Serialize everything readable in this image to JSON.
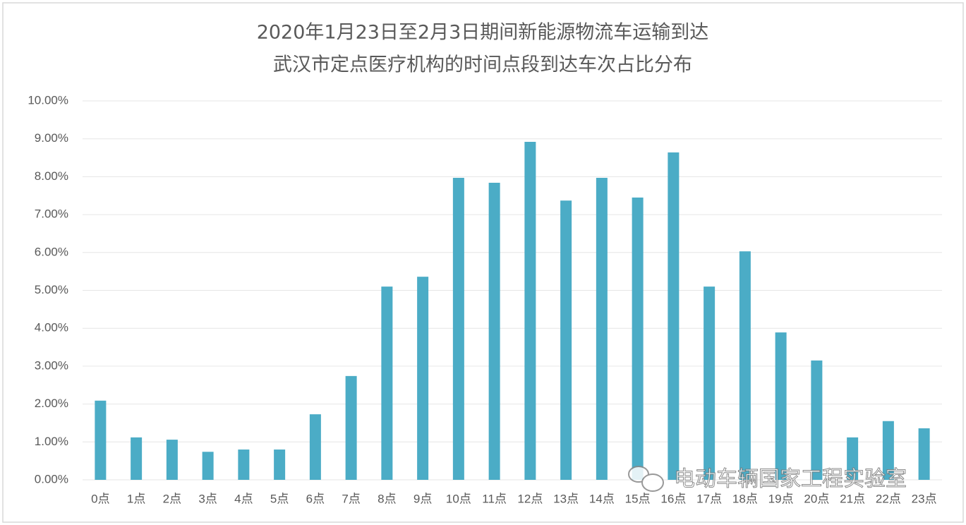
{
  "chart_data": {
    "type": "bar",
    "title": [
      "2020年1月23日至2月3日期间新能源物流车运输到达",
      "武汉市定点医疗机构的时间点段到达车次占比分布"
    ],
    "categories": [
      "0点",
      "1点",
      "2点",
      "3点",
      "4点",
      "5点",
      "6点",
      "7点",
      "8点",
      "9点",
      "10点",
      "11点",
      "12点",
      "13点",
      "14点",
      "15点",
      "16点",
      "17点",
      "18点",
      "19点",
      "20点",
      "21点",
      "22点",
      "23点"
    ],
    "values": [
      2.09,
      1.12,
      1.06,
      0.74,
      0.8,
      0.8,
      1.73,
      2.74,
      5.1,
      5.36,
      7.97,
      7.84,
      8.92,
      7.37,
      7.97,
      7.45,
      8.64,
      5.1,
      6.03,
      3.89,
      3.15,
      1.12,
      1.55,
      1.36
    ],
    "color": "#4bacc6",
    "ylim": [
      0,
      10
    ],
    "yticks": [
      {
        "value": 0,
        "label": "0.00%"
      },
      {
        "value": 1,
        "label": "1.00%"
      },
      {
        "value": 2,
        "label": "2.00%"
      },
      {
        "value": 3,
        "label": "3.00%"
      },
      {
        "value": 4,
        "label": "4.00%"
      },
      {
        "value": 5,
        "label": "5.00%"
      },
      {
        "value": 6,
        "label": "6.00%"
      },
      {
        "value": 7,
        "label": "7.00%"
      },
      {
        "value": 8,
        "label": "8.00%"
      },
      {
        "value": 9,
        "label": "9.00%"
      },
      {
        "value": 10,
        "label": "10.00%"
      }
    ],
    "grid": true
  },
  "watermark": "电动车辆国家工程实验室"
}
